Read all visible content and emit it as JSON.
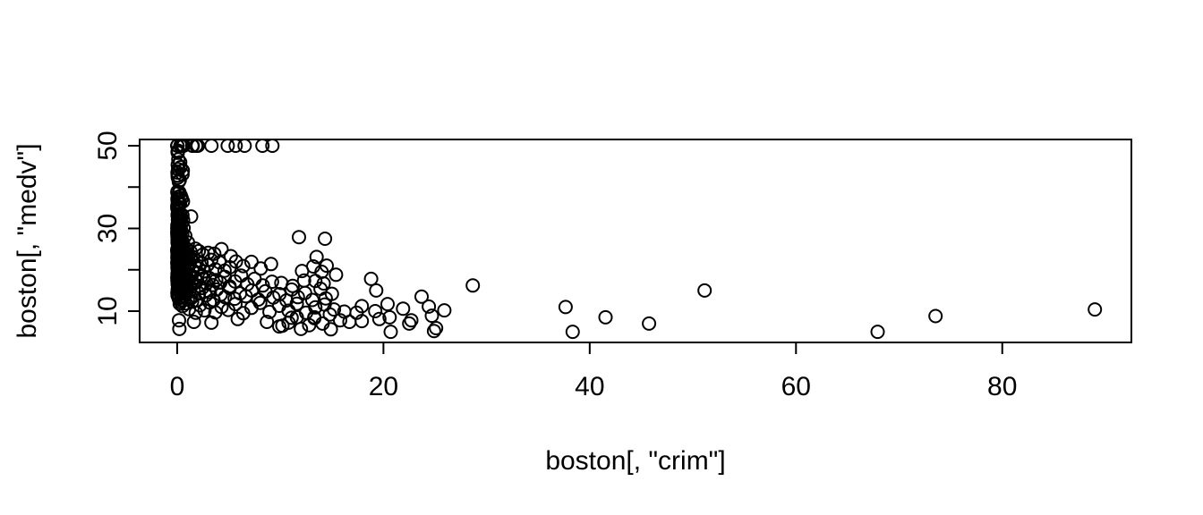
{
  "figure": {
    "background": "#ffffff",
    "foreground": "#000000"
  },
  "chart_data": {
    "type": "scatter",
    "title": "",
    "xlabel": "boston[, \"crim\"]",
    "ylabel": "boston[, \"medv\"]",
    "x_ticks": [
      0,
      20,
      40,
      60,
      80
    ],
    "y_ticks": [
      10,
      20,
      30,
      40,
      50
    ],
    "y_labeled_ticks": [
      10,
      30,
      50
    ],
    "xlim": [
      -3.64,
      92.52
    ],
    "ylim": [
      2.43,
      51.51
    ],
    "grid": false,
    "legend": null,
    "marker": "open-circle",
    "point_color": "#000000",
    "points": [
      [
        0.0138,
        50
      ],
      [
        0.0201,
        50
      ],
      [
        0.0256,
        50
      ],
      [
        0.3153,
        50
      ],
      [
        0.3315,
        50
      ],
      [
        0.3821,
        50
      ],
      [
        0.5269,
        50
      ],
      [
        0.5501,
        50
      ],
      [
        0.5783,
        50
      ],
      [
        0.6115,
        50
      ],
      [
        1.4634,
        50
      ],
      [
        1.519,
        50
      ],
      [
        1.8338,
        50
      ],
      [
        2.0102,
        50
      ],
      [
        3.321,
        50
      ],
      [
        4.8982,
        50
      ],
      [
        5.67,
        50
      ],
      [
        6.5388,
        50
      ],
      [
        8.2672,
        50
      ],
      [
        9.2323,
        50
      ],
      [
        0.08,
        48.8
      ],
      [
        0.036,
        48.5
      ],
      [
        0.055,
        48.3
      ],
      [
        0.105,
        46.7
      ],
      [
        0.29,
        46
      ],
      [
        0.057,
        45.4
      ],
      [
        0.33,
        44.8
      ],
      [
        0.54,
        44
      ],
      [
        0.09,
        44.3
      ],
      [
        0.035,
        43.5
      ],
      [
        0.52,
        43.1
      ],
      [
        0.05,
        42.8
      ],
      [
        0.067,
        42.3
      ],
      [
        0.25,
        41.7
      ],
      [
        0.16,
        41.3
      ],
      [
        0.02,
        38.7
      ],
      [
        0.031,
        37.2
      ],
      [
        0.042,
        37
      ],
      [
        0.095,
        36.5
      ],
      [
        0.13,
        36.2
      ],
      [
        0.35,
        37.9
      ],
      [
        0.44,
        37.3
      ],
      [
        0.09,
        36.1
      ],
      [
        0.06,
        36.4
      ],
      [
        0.56,
        36.5
      ],
      [
        0.03,
        38.9
      ],
      [
        0.27,
        36
      ],
      [
        0.08,
        37.6
      ],
      [
        0.21,
        38.7
      ],
      [
        0.01,
        35.4
      ],
      [
        0.026,
        34.9
      ],
      [
        0.033,
        34.9
      ],
      [
        0.046,
        33.4
      ],
      [
        0.049,
        33.2
      ],
      [
        0.06,
        33.1
      ],
      [
        0.066,
        34.6
      ],
      [
        0.071,
        32.2
      ],
      [
        0.084,
        32
      ],
      [
        0.097,
        31.6
      ],
      [
        0.11,
        35.2
      ],
      [
        0.13,
        32.7
      ],
      [
        0.14,
        34.9
      ],
      [
        0.17,
        32.4
      ],
      [
        0.22,
        31.1
      ],
      [
        0.27,
        32
      ],
      [
        0.31,
        33.3
      ],
      [
        0.36,
        32.5
      ],
      [
        0.44,
        31.2
      ],
      [
        0.51,
        33.2
      ],
      [
        0.58,
        32
      ],
      [
        1.35,
        32.9
      ],
      [
        0.013,
        29.1
      ],
      [
        0.017,
        30.1
      ],
      [
        0.02,
        28.7
      ],
      [
        0.025,
        30.8
      ],
      [
        0.028,
        29.6
      ],
      [
        0.03,
        28.4
      ],
      [
        0.034,
        28
      ],
      [
        0.04,
        27.1
      ],
      [
        0.043,
        26.6
      ],
      [
        0.047,
        26.7
      ],
      [
        0.051,
        28.2
      ],
      [
        0.054,
        28
      ],
      [
        0.06,
        29
      ],
      [
        0.064,
        30.5
      ],
      [
        0.07,
        26.4
      ],
      [
        0.078,
        29.4
      ],
      [
        0.08,
        27.5
      ],
      [
        0.09,
        28.5
      ],
      [
        0.1,
        26.6
      ],
      [
        0.11,
        27.9
      ],
      [
        0.12,
        30.3
      ],
      [
        0.14,
        29.8
      ],
      [
        0.15,
        29.9
      ],
      [
        0.17,
        27
      ],
      [
        0.19,
        30.7
      ],
      [
        0.21,
        28.1
      ],
      [
        0.24,
        26.2
      ],
      [
        0.26,
        27
      ],
      [
        0.29,
        28.6
      ],
      [
        0.33,
        26.4
      ],
      [
        0.38,
        29.6
      ],
      [
        0.43,
        26.5
      ],
      [
        0.49,
        28.7
      ],
      [
        0.55,
        26.7
      ],
      [
        0.62,
        30.1
      ],
      [
        0.79,
        28.2
      ],
      [
        1.05,
        26.6
      ],
      [
        11.81,
        27.9
      ],
      [
        14.33,
        27.5
      ],
      [
        13.52,
        23.1
      ],
      [
        0.014,
        24.7
      ],
      [
        0.019,
        24.5
      ],
      [
        0.024,
        25
      ],
      [
        0.03,
        23.4
      ],
      [
        0.035,
        24.1
      ],
      [
        0.04,
        24.8
      ],
      [
        0.046,
        23.9
      ],
      [
        0.052,
        24.4
      ],
      [
        0.06,
        23.2
      ],
      [
        0.067,
        24
      ],
      [
        0.074,
        24.6
      ],
      [
        0.082,
        23.6
      ],
      [
        0.09,
        25
      ],
      [
        0.1,
        24.3
      ],
      [
        0.11,
        23.7
      ],
      [
        0.13,
        25.2
      ],
      [
        0.14,
        23.3
      ],
      [
        0.16,
        24.2
      ],
      [
        0.18,
        23.8
      ],
      [
        0.2,
        24.1
      ],
      [
        0.23,
        25
      ],
      [
        0.26,
        23.9
      ],
      [
        0.29,
        24.8
      ],
      [
        0.32,
        23.1
      ],
      [
        0.36,
        25.3
      ],
      [
        0.41,
        23
      ],
      [
        0.46,
        24.5
      ],
      [
        0.52,
        23.3
      ],
      [
        0.59,
        24.7
      ],
      [
        0.67,
        23.9
      ],
      [
        0.76,
        24.4
      ],
      [
        0.86,
        23.8
      ],
      [
        0.98,
        25
      ],
      [
        1.13,
        23.6
      ],
      [
        1.31,
        24.3
      ],
      [
        1.52,
        23.1
      ],
      [
        1.77,
        25.1
      ],
      [
        2.1,
        24.5
      ],
      [
        2.5,
        23.7
      ],
      [
        3,
        24.1
      ],
      [
        3.6,
        23.9
      ],
      [
        4.3,
        25
      ],
      [
        5.2,
        23.3
      ],
      [
        0.013,
        21.6
      ],
      [
        0.02,
        22.9
      ],
      [
        0.027,
        20.6
      ],
      [
        0.033,
        22
      ],
      [
        0.04,
        21.1
      ],
      [
        0.047,
        20.3
      ],
      [
        0.055,
        21.7
      ],
      [
        0.06,
        22.7
      ],
      [
        0.07,
        19.9
      ],
      [
        0.078,
        21.4
      ],
      [
        0.086,
        22.6
      ],
      [
        0.095,
        20.1
      ],
      [
        0.105,
        21.8
      ],
      [
        0.116,
        22.2
      ],
      [
        0.13,
        20
      ],
      [
        0.14,
        21.5
      ],
      [
        0.155,
        22.8
      ],
      [
        0.17,
        19.6
      ],
      [
        0.19,
        20.9
      ],
      [
        0.21,
        22.4
      ],
      [
        0.23,
        20.5
      ],
      [
        0.25,
        21.2
      ],
      [
        0.28,
        22
      ],
      [
        0.31,
        19.8
      ],
      [
        0.34,
        21
      ],
      [
        0.38,
        22.3
      ],
      [
        0.42,
        20.4
      ],
      [
        0.46,
        21.9
      ],
      [
        0.51,
        19.7
      ],
      [
        0.57,
        21.4
      ],
      [
        0.63,
        22.5
      ],
      [
        0.7,
        20.2
      ],
      [
        0.78,
        21.6
      ],
      [
        0.87,
        19.5
      ],
      [
        0.97,
        22.1
      ],
      [
        1.08,
        20.7
      ],
      [
        1.21,
        21.3
      ],
      [
        1.35,
        22.6
      ],
      [
        1.51,
        19.9
      ],
      [
        1.69,
        21
      ],
      [
        1.89,
        22.2
      ],
      [
        2.11,
        20.3
      ],
      [
        2.36,
        21.7
      ],
      [
        2.64,
        19.6
      ],
      [
        2.95,
        21.2
      ],
      [
        3.3,
        22.4
      ],
      [
        3.7,
        20.1
      ],
      [
        4.1,
        21.8
      ],
      [
        4.6,
        19.8
      ],
      [
        5.1,
        20.6
      ],
      [
        5.7,
        22
      ],
      [
        6.4,
        20.9
      ],
      [
        7.2,
        21.9
      ],
      [
        8.1,
        20.3
      ],
      [
        9.1,
        21.4
      ],
      [
        12.1,
        19.7
      ],
      [
        14,
        19.5
      ],
      [
        13.2,
        20.8
      ],
      [
        14.5,
        21
      ],
      [
        15.4,
        18.8
      ],
      [
        0.016,
        18.2
      ],
      [
        0.025,
        17.5
      ],
      [
        0.035,
        19
      ],
      [
        0.045,
        16.5
      ],
      [
        0.055,
        18.4
      ],
      [
        0.065,
        17.1
      ],
      [
        0.076,
        19.3
      ],
      [
        0.088,
        16.8
      ],
      [
        0.1,
        18.9
      ],
      [
        0.113,
        17.3
      ],
      [
        0.127,
        18.6
      ],
      [
        0.142,
        16.2
      ],
      [
        0.158,
        19.4
      ],
      [
        0.175,
        17.8
      ],
      [
        0.193,
        16.6
      ],
      [
        0.213,
        18.3
      ],
      [
        0.235,
        17
      ],
      [
        0.259,
        19.1
      ],
      [
        0.285,
        16.3
      ],
      [
        0.313,
        18
      ],
      [
        0.344,
        17.4
      ],
      [
        0.378,
        19.2
      ],
      [
        0.415,
        16.1
      ],
      [
        0.455,
        18.5
      ],
      [
        0.5,
        17.2
      ],
      [
        0.55,
        16.5
      ],
      [
        0.6,
        18.8
      ],
      [
        0.66,
        16
      ],
      [
        0.73,
        17.7
      ],
      [
        0.8,
        19.3
      ],
      [
        0.88,
        16.4
      ],
      [
        0.97,
        18.1
      ],
      [
        1.07,
        17.6
      ],
      [
        1.18,
        16.2
      ],
      [
        1.3,
        18.7
      ],
      [
        1.43,
        17
      ],
      [
        1.58,
        16.6
      ],
      [
        1.74,
        18.2
      ],
      [
        1.92,
        17.3
      ],
      [
        2.12,
        16.1
      ],
      [
        2.33,
        18.4
      ],
      [
        2.57,
        17.9
      ],
      [
        2.83,
        16.7
      ],
      [
        3.12,
        18
      ],
      [
        3.44,
        16.3
      ],
      [
        3.79,
        17.5
      ],
      [
        4.18,
        16.9
      ],
      [
        4.61,
        18.3
      ],
      [
        5.08,
        16
      ],
      [
        5.6,
        17.2
      ],
      [
        6.2,
        18.6
      ],
      [
        6.8,
        16.5
      ],
      [
        7.5,
        17.8
      ],
      [
        8.3,
        16.2
      ],
      [
        9.2,
        17.1
      ],
      [
        10.1,
        16.8
      ],
      [
        11.2,
        16.1
      ],
      [
        12.3,
        17.4
      ],
      [
        13.4,
        17.3
      ],
      [
        14.2,
        16.7
      ],
      [
        18.8,
        17.8
      ],
      [
        19.3,
        15
      ],
      [
        28.66,
        16.2
      ],
      [
        51.14,
        15
      ],
      [
        0.02,
        14.4
      ],
      [
        0.04,
        13.8
      ],
      [
        0.06,
        15.2
      ],
      [
        0.09,
        14.1
      ],
      [
        0.12,
        15.6
      ],
      [
        0.15,
        13.1
      ],
      [
        0.19,
        14.9
      ],
      [
        0.24,
        13.4
      ],
      [
        0.3,
        15.3
      ],
      [
        0.37,
        12.7
      ],
      [
        0.45,
        14.5
      ],
      [
        0.54,
        15.7
      ],
      [
        0.64,
        13.5
      ],
      [
        0.75,
        14.2
      ],
      [
        0.88,
        15.4
      ],
      [
        1.02,
        12.8
      ],
      [
        1.19,
        14.7
      ],
      [
        1.38,
        13.2
      ],
      [
        1.6,
        15
      ],
      [
        1.84,
        12.6
      ],
      [
        2.11,
        14.3
      ],
      [
        2.42,
        15.6
      ],
      [
        2.77,
        13.8
      ],
      [
        3.16,
        14.6
      ],
      [
        3.53,
        12.7
      ],
      [
        3.83,
        15.2
      ],
      [
        4.22,
        14
      ],
      [
        4.64,
        13.4
      ],
      [
        5.09,
        15.6
      ],
      [
        5.58,
        13
      ],
      [
        6.1,
        14.3
      ],
      [
        6.65,
        13.6
      ],
      [
        7.24,
        15
      ],
      [
        7.87,
        12.8
      ],
      [
        8.55,
        14.8
      ],
      [
        9.33,
        13.3
      ],
      [
        9.92,
        14.1
      ],
      [
        10.6,
        12.6
      ],
      [
        11.1,
        15.2
      ],
      [
        11.7,
        13.4
      ],
      [
        12.4,
        14.4
      ],
      [
        13.1,
        12.7
      ],
      [
        13.9,
        15.4
      ],
      [
        14.4,
        13.1
      ],
      [
        15,
        14.2
      ],
      [
        23.7,
        13.5
      ],
      [
        0.25,
        11.8
      ],
      [
        0.36,
        12.2
      ],
      [
        0.52,
        11.2
      ],
      [
        0.85,
        11.9
      ],
      [
        1.15,
        10.5
      ],
      [
        1.45,
        12.3
      ],
      [
        1.8,
        9.6
      ],
      [
        2.2,
        11.4
      ],
      [
        2.65,
        10.2
      ],
      [
        3.15,
        12.1
      ],
      [
        3.7,
        9.7
      ],
      [
        4.3,
        11
      ],
      [
        4.95,
        10.3
      ],
      [
        5.65,
        11.7
      ],
      [
        6.4,
        9.5
      ],
      [
        7.2,
        10.8
      ],
      [
        8.05,
        12
      ],
      [
        8.95,
        9.8
      ],
      [
        9.9,
        11.3
      ],
      [
        10.8,
        10.1
      ],
      [
        11.6,
        11.8
      ],
      [
        12.5,
        9.6
      ],
      [
        13.4,
        10.9
      ],
      [
        14.3,
        11.6
      ],
      [
        15.2,
        10.4
      ],
      [
        16.2,
        9.9
      ],
      [
        17.4,
        9.6
      ],
      [
        17.9,
        11.2
      ],
      [
        19.2,
        10
      ],
      [
        20.4,
        11.7
      ],
      [
        20.6,
        8.5
      ],
      [
        21.9,
        10.6
      ],
      [
        24.4,
        11.1
      ],
      [
        24.7,
        8.9
      ],
      [
        25.9,
        10.2
      ],
      [
        11.6,
        8.5
      ],
      [
        13.3,
        8.5
      ],
      [
        14.8,
        9.2
      ],
      [
        37.66,
        11
      ],
      [
        41.53,
        8.5
      ],
      [
        73.53,
        8.8
      ],
      [
        88.98,
        10.4
      ],
      [
        0.18,
        7.8
      ],
      [
        0.21,
        5.7
      ],
      [
        1.62,
        7.4
      ],
      [
        3.32,
        7.2
      ],
      [
        5.87,
        8.1
      ],
      [
        8.7,
        7.4
      ],
      [
        9.9,
        6.3
      ],
      [
        10.2,
        6.5
      ],
      [
        10.8,
        7.2
      ],
      [
        11.1,
        8.4
      ],
      [
        12,
        5.7
      ],
      [
        12.8,
        6.6
      ],
      [
        13.3,
        8.3
      ],
      [
        14.1,
        7
      ],
      [
        14.9,
        5.6
      ],
      [
        15.8,
        7.8
      ],
      [
        16.7,
        7.4
      ],
      [
        17.9,
        7.6
      ],
      [
        19.6,
        8.1
      ],
      [
        20.7,
        5
      ],
      [
        22.5,
        7
      ],
      [
        22.7,
        7.8
      ],
      [
        24.9,
        5.2
      ],
      [
        25.1,
        5.9
      ],
      [
        38.35,
        5
      ],
      [
        45.75,
        7
      ],
      [
        67.92,
        5
      ]
    ]
  }
}
